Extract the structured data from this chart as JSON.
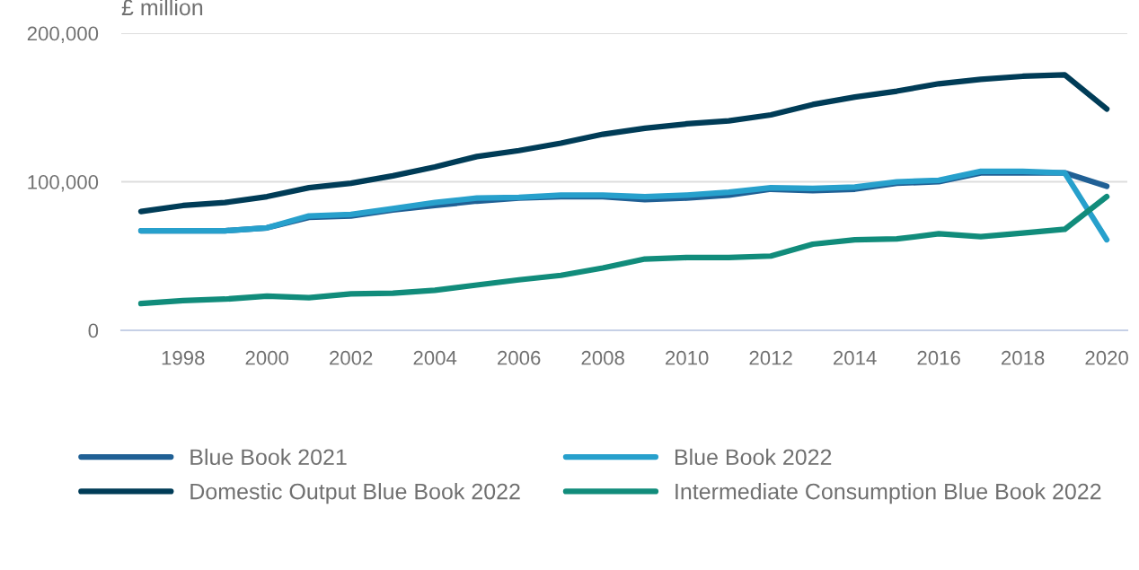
{
  "chart_data": {
    "type": "line",
    "ylabel": "£ million",
    "x": [
      1997,
      1998,
      1999,
      2000,
      2001,
      2002,
      2003,
      2004,
      2005,
      2006,
      2007,
      2008,
      2009,
      2010,
      2011,
      2012,
      2013,
      2014,
      2015,
      2016,
      2017,
      2018,
      2019,
      2020
    ],
    "series": [
      {
        "name": "Blue Book 2021",
        "color": "#206095",
        "values": [
          67000,
          67000,
          67000,
          69000,
          76000,
          77000,
          81000,
          84000,
          87000,
          89000,
          90000,
          90000,
          88000,
          89000,
          91000,
          95000,
          94000,
          95000,
          99000,
          100000,
          106000,
          106000,
          106000,
          97000
        ]
      },
      {
        "name": "Blue Book 2022",
        "color": "#27a0cc",
        "values": [
          67000,
          67000,
          67000,
          69000,
          77000,
          78000,
          82000,
          86000,
          89000,
          89500,
          91000,
          91000,
          90000,
          91000,
          93000,
          96000,
          95500,
          96500,
          100000,
          101000,
          107000,
          107000,
          106000,
          61000
        ]
      },
      {
        "name": "Domestic Output Blue Book 2022",
        "color": "#003c57",
        "values": [
          80000,
          84000,
          86000,
          90000,
          96000,
          99000,
          104000,
          110000,
          117000,
          121000,
          126000,
          132000,
          136000,
          139000,
          141000,
          145000,
          152000,
          157000,
          161000,
          166000,
          169000,
          171000,
          172000,
          149000
        ]
      },
      {
        "name": "Intermediate Consumption Blue Book 2022",
        "color": "#118c7b",
        "values": [
          18000,
          20000,
          21000,
          23000,
          22000,
          24500,
          25000,
          27000,
          30500,
          34000,
          37000,
          42000,
          48000,
          49000,
          49000,
          50000,
          58000,
          61000,
          61500,
          65000,
          63000,
          65500,
          68000,
          90000
        ]
      }
    ],
    "xlim": [
      1996.53,
      2020.49
    ],
    "ylim": [
      0,
      200000
    ],
    "xticks": [
      1998,
      2000,
      2002,
      2004,
      2006,
      2008,
      2010,
      2012,
      2014,
      2016,
      2018,
      2020
    ],
    "yticks": [
      {
        "value": 0,
        "label": "0"
      },
      {
        "value": 100000,
        "label": "100,000"
      },
      {
        "value": 200000,
        "label": "200,000"
      }
    ],
    "grid": "y",
    "legend": "bottom",
    "marker": "none",
    "line_style": "solid"
  }
}
